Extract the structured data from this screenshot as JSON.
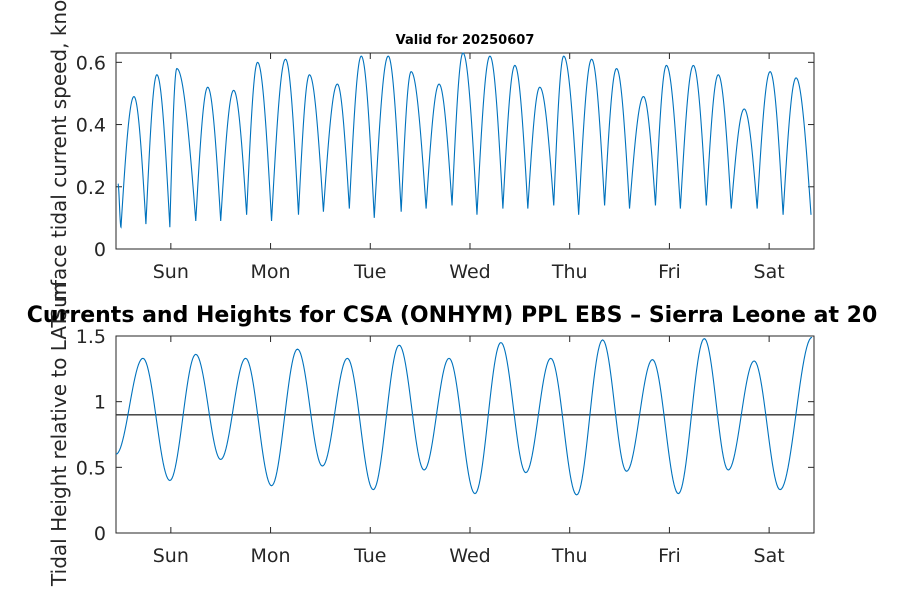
{
  "chart_data": [
    {
      "type": "line",
      "title": "Valid for 20250607",
      "ylabel": "Surface tidal current speed, knots",
      "xlabel": "",
      "ylim": [
        0,
        0.63
      ],
      "yticks": [
        0,
        0.2,
        0.4,
        0.6
      ],
      "ytick_labels": [
        "0",
        "0.2",
        "0.4",
        "0.6"
      ],
      "xlim": [
        0,
        7
      ],
      "xticks": [
        0.55,
        1.55,
        2.55,
        3.55,
        4.55,
        5.55,
        6.55
      ],
      "xtick_labels": [
        "Sun",
        "Mon",
        "Tue",
        "Wed",
        "Thu",
        "Fri",
        "Sat"
      ],
      "grid": false,
      "series": [
        {
          "color": "#0072bd",
          "peaks": [
            {
              "x": 0.18,
              "y": 0.49
            },
            {
              "x": 0.41,
              "y": 0.56
            },
            {
              "x": 0.61,
              "y": 0.58
            },
            {
              "x": 0.92,
              "y": 0.52
            },
            {
              "x": 1.18,
              "y": 0.51
            },
            {
              "x": 1.42,
              "y": 0.6
            },
            {
              "x": 1.7,
              "y": 0.61
            },
            {
              "x": 1.94,
              "y": 0.56
            },
            {
              "x": 2.22,
              "y": 0.53
            },
            {
              "x": 2.46,
              "y": 0.62
            },
            {
              "x": 2.73,
              "y": 0.62
            },
            {
              "x": 2.96,
              "y": 0.57
            },
            {
              "x": 3.24,
              "y": 0.53
            },
            {
              "x": 3.48,
              "y": 0.63
            },
            {
              "x": 3.75,
              "y": 0.62
            },
            {
              "x": 4.0,
              "y": 0.59
            },
            {
              "x": 4.25,
              "y": 0.52
            },
            {
              "x": 4.49,
              "y": 0.62
            },
            {
              "x": 4.77,
              "y": 0.61
            },
            {
              "x": 5.02,
              "y": 0.58
            },
            {
              "x": 5.29,
              "y": 0.49
            },
            {
              "x": 5.52,
              "y": 0.59
            },
            {
              "x": 5.79,
              "y": 0.59
            },
            {
              "x": 6.04,
              "y": 0.56
            },
            {
              "x": 6.3,
              "y": 0.45
            },
            {
              "x": 6.56,
              "y": 0.57
            },
            {
              "x": 6.82,
              "y": 0.55
            }
          ],
          "troughs": [
            {
              "x": 0.02,
              "y": 0.21
            },
            {
              "x": 0.05,
              "y": 0.07
            },
            {
              "x": 0.3,
              "y": 0.08
            },
            {
              "x": 0.54,
              "y": 0.07
            },
            {
              "x": 0.8,
              "y": 0.09
            },
            {
              "x": 1.05,
              "y": 0.09
            },
            {
              "x": 1.31,
              "y": 0.11
            },
            {
              "x": 1.56,
              "y": 0.09
            },
            {
              "x": 1.83,
              "y": 0.11
            },
            {
              "x": 2.08,
              "y": 0.12
            },
            {
              "x": 2.34,
              "y": 0.13
            },
            {
              "x": 2.59,
              "y": 0.1
            },
            {
              "x": 2.86,
              "y": 0.12
            },
            {
              "x": 3.11,
              "y": 0.13
            },
            {
              "x": 3.37,
              "y": 0.14
            },
            {
              "x": 3.62,
              "y": 0.11
            },
            {
              "x": 3.88,
              "y": 0.13
            },
            {
              "x": 4.13,
              "y": 0.13
            },
            {
              "x": 4.39,
              "y": 0.14
            },
            {
              "x": 4.64,
              "y": 0.11
            },
            {
              "x": 4.9,
              "y": 0.14
            },
            {
              "x": 5.15,
              "y": 0.13
            },
            {
              "x": 5.41,
              "y": 0.14
            },
            {
              "x": 5.66,
              "y": 0.13
            },
            {
              "x": 5.92,
              "y": 0.14
            },
            {
              "x": 6.17,
              "y": 0.13
            },
            {
              "x": 6.43,
              "y": 0.13
            },
            {
              "x": 6.69,
              "y": 0.11
            },
            {
              "x": 6.97,
              "y": 0.11
            }
          ]
        }
      ]
    },
    {
      "type": "line",
      "title": "Currents and Heights for CSA (ONHYM) PPL EBS  – Sierra Leone at 20",
      "ylabel": "Tidal Height relative to LAT, m",
      "xlabel": "",
      "ylim": [
        0,
        1.5
      ],
      "yticks": [
        0,
        0.5,
        1,
        1.5
      ],
      "ytick_labels": [
        "0",
        "0.5",
        "1",
        "1.5"
      ],
      "xlim": [
        0,
        7
      ],
      "xticks": [
        0.55,
        1.55,
        2.55,
        3.55,
        4.55,
        5.55,
        6.55
      ],
      "xtick_labels": [
        "Sun",
        "Mon",
        "Tue",
        "Wed",
        "Thu",
        "Fri",
        "Sat"
      ],
      "grid": false,
      "reference_line": {
        "y": 0.9,
        "color": "#333333"
      },
      "series": [
        {
          "color": "#0072bd",
          "extrema": [
            {
              "x": 0.0,
              "y": 0.6
            },
            {
              "x": 0.27,
              "y": 1.33
            },
            {
              "x": 0.54,
              "y": 0.4
            },
            {
              "x": 0.8,
              "y": 1.36
            },
            {
              "x": 1.05,
              "y": 0.56
            },
            {
              "x": 1.3,
              "y": 1.33
            },
            {
              "x": 1.56,
              "y": 0.36
            },
            {
              "x": 1.82,
              "y": 1.4
            },
            {
              "x": 2.07,
              "y": 0.51
            },
            {
              "x": 2.32,
              "y": 1.33
            },
            {
              "x": 2.58,
              "y": 0.33
            },
            {
              "x": 2.84,
              "y": 1.43
            },
            {
              "x": 3.09,
              "y": 0.48
            },
            {
              "x": 3.34,
              "y": 1.33
            },
            {
              "x": 3.6,
              "y": 0.3
            },
            {
              "x": 3.86,
              "y": 1.45
            },
            {
              "x": 4.11,
              "y": 0.46
            },
            {
              "x": 4.36,
              "y": 1.33
            },
            {
              "x": 4.62,
              "y": 0.29
            },
            {
              "x": 4.88,
              "y": 1.47
            },
            {
              "x": 5.12,
              "y": 0.47
            },
            {
              "x": 5.38,
              "y": 1.32
            },
            {
              "x": 5.64,
              "y": 0.3
            },
            {
              "x": 5.9,
              "y": 1.48
            },
            {
              "x": 6.14,
              "y": 0.48
            },
            {
              "x": 6.4,
              "y": 1.31
            },
            {
              "x": 6.66,
              "y": 0.33
            },
            {
              "x": 6.98,
              "y": 1.49
            }
          ]
        }
      ]
    }
  ]
}
